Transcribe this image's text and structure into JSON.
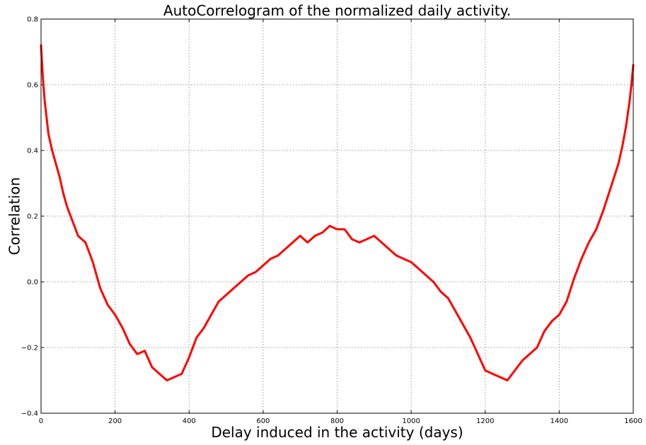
{
  "chart_data": {
    "type": "line",
    "title": "AutoCorrelogram of the normalized daily activity.",
    "xlabel": "Delay induced in the activity (days)",
    "ylabel": "Correlation",
    "xlim": [
      0,
      1600
    ],
    "ylim": [
      -0.4,
      0.8
    ],
    "x_ticks": [
      0,
      200,
      400,
      600,
      800,
      1000,
      1200,
      1400,
      1600
    ],
    "x_tick_labels": [
      "0",
      "200",
      "400",
      "600",
      "800",
      "1000",
      "1200",
      "1400",
      "1600"
    ],
    "y_ticks": [
      -0.4,
      -0.2,
      0.0,
      0.2,
      0.4,
      0.6,
      0.8
    ],
    "y_tick_labels": [
      "−0.4",
      "−0.2",
      "0.0",
      "0.2",
      "0.4",
      "0.6",
      "0.8"
    ],
    "grid": true,
    "series": [
      {
        "color": "#ff0000",
        "x": [
          0,
          5,
          10,
          20,
          30,
          40,
          50,
          60,
          70,
          80,
          90,
          100,
          120,
          140,
          160,
          180,
          200,
          220,
          240,
          260,
          280,
          300,
          320,
          340,
          360,
          380,
          400,
          420,
          440,
          460,
          480,
          500,
          520,
          540,
          560,
          580,
          600,
          620,
          640,
          660,
          680,
          700,
          720,
          740,
          760,
          780,
          800,
          820,
          840,
          860,
          880,
          900,
          920,
          940,
          960,
          980,
          1000,
          1020,
          1040,
          1060,
          1080,
          1100,
          1120,
          1140,
          1160,
          1180,
          1200,
          1220,
          1240,
          1260,
          1280,
          1300,
          1320,
          1340,
          1360,
          1380,
          1400,
          1420,
          1440,
          1460,
          1480,
          1500,
          1520,
          1540,
          1560,
          1570,
          1580,
          1590,
          1595,
          1600
        ],
        "y": [
          0.72,
          0.62,
          0.55,
          0.45,
          0.4,
          0.36,
          0.32,
          0.27,
          0.23,
          0.2,
          0.17,
          0.14,
          0.12,
          0.06,
          -0.02,
          -0.07,
          -0.1,
          -0.14,
          -0.19,
          -0.22,
          -0.21,
          -0.26,
          -0.28,
          -0.3,
          -0.29,
          -0.28,
          -0.23,
          -0.17,
          -0.14,
          -0.1,
          -0.06,
          -0.04,
          -0.02,
          0.0,
          0.02,
          0.03,
          0.05,
          0.07,
          0.08,
          0.1,
          0.12,
          0.14,
          0.12,
          0.14,
          0.15,
          0.17,
          0.16,
          0.16,
          0.13,
          0.12,
          0.13,
          0.14,
          0.12,
          0.1,
          0.08,
          0.07,
          0.06,
          0.04,
          0.02,
          0.0,
          -0.03,
          -0.05,
          -0.09,
          -0.13,
          -0.17,
          -0.22,
          -0.27,
          -0.28,
          -0.29,
          -0.3,
          -0.27,
          -0.24,
          -0.22,
          -0.2,
          -0.15,
          -0.12,
          -0.1,
          -0.06,
          0.01,
          0.07,
          0.12,
          0.16,
          0.22,
          0.29,
          0.36,
          0.41,
          0.47,
          0.55,
          0.6,
          0.66
        ]
      }
    ]
  }
}
